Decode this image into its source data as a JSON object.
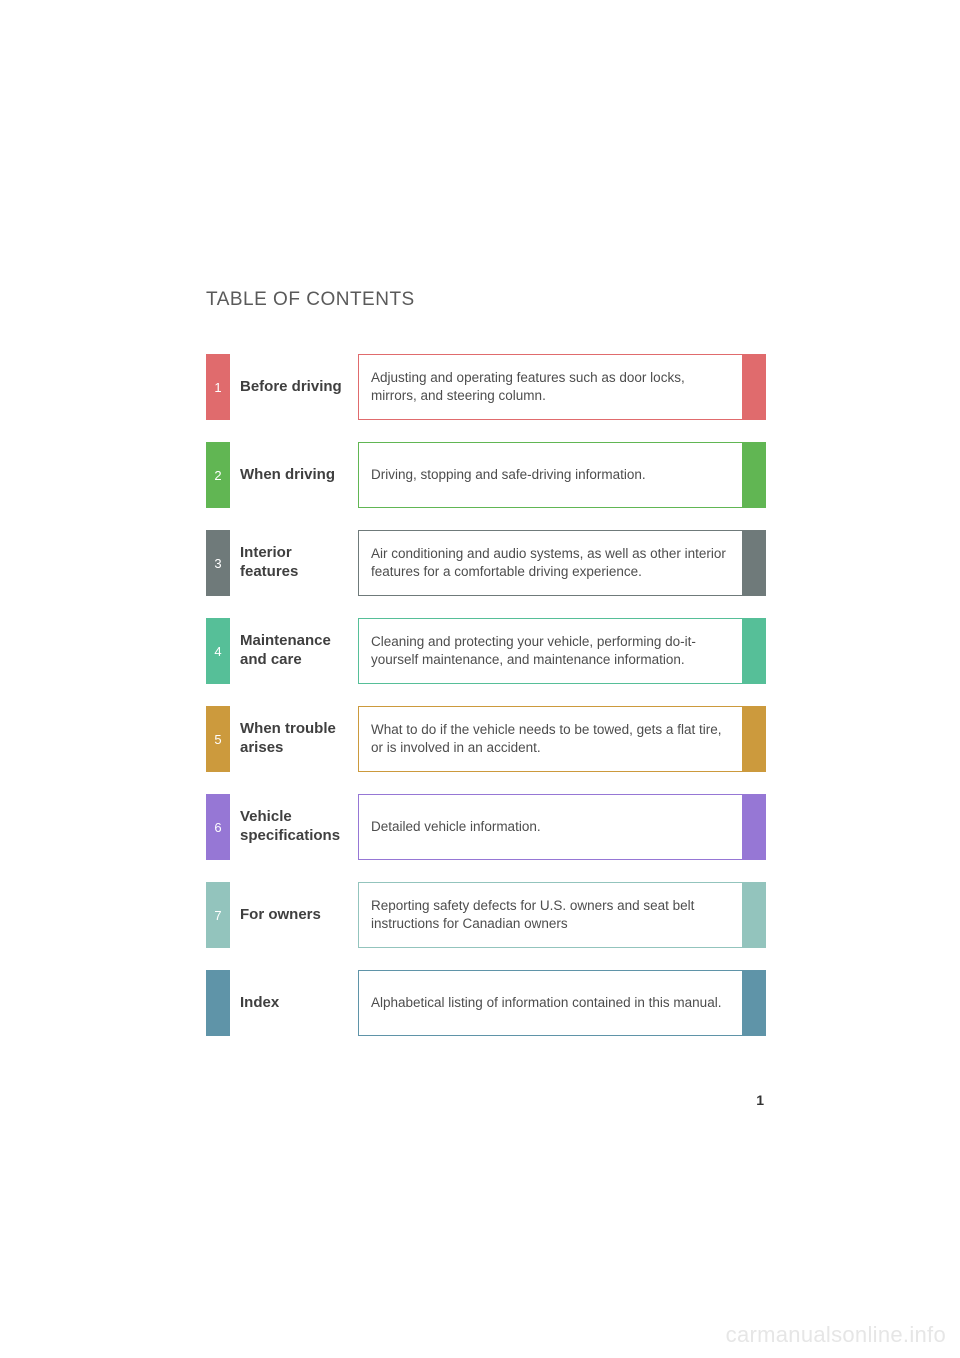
{
  "heading": "TABLE OF CONTENTS",
  "page_number": "1",
  "watermark": "carmanualsonline.info",
  "colors": {
    "heading_text": "#5a5a5a",
    "title_text": "#3f3f3f",
    "desc_text": "#4d4d4d",
    "background": "#ffffff"
  },
  "rows": [
    {
      "num": "1",
      "title": "Before driving",
      "desc": "Adjusting and operating features such as door locks, mirrors, and steering column.",
      "color": "#e06b6d"
    },
    {
      "num": "2",
      "title": "When driving",
      "desc": "Driving, stopping and safe-driving information.",
      "color": "#61b653"
    },
    {
      "num": "3",
      "title": "Interior features",
      "desc": "Air conditioning and audio systems, as well as other interior features for a comfortable driving experience.",
      "color": "#6f7a7a"
    },
    {
      "num": "4",
      "title": "Maintenance and care",
      "desc": "Cleaning and protecting your vehicle, performing do-it-yourself maintenance, and maintenance information.",
      "color": "#56bf98"
    },
    {
      "num": "5",
      "title": "When trouble arises",
      "desc": "What to do if the vehicle needs to be towed, gets a flat tire, or is involved in an accident.",
      "color": "#cc9a3d"
    },
    {
      "num": "6",
      "title": "Vehicle specifications",
      "desc": "Detailed vehicle information.",
      "color": "#9677d5"
    },
    {
      "num": "7",
      "title": "For owners",
      "desc": "Reporting safety defects for U.S. owners and seat belt instructions for Canadian owners",
      "color": "#93c4bd"
    },
    {
      "num": "",
      "title": "Index",
      "desc": "Alphabetical listing of information contained in this manual.",
      "color": "#5f94a8"
    }
  ]
}
